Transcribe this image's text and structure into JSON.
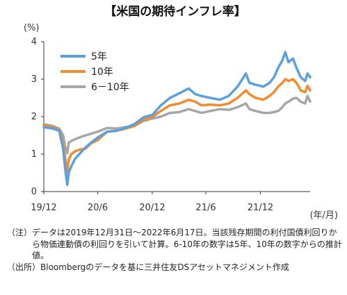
{
  "chart_data": {
    "type": "line",
    "title": "【米国の期待インフレ率】",
    "ylabel": "(%)",
    "xlabel": "(年/月)",
    "ylim": [
      0,
      4
    ],
    "yticks": [
      "0",
      "1",
      "2",
      "3",
      "4"
    ],
    "xlim": [
      "2019-12-31",
      "2022-06-17"
    ],
    "xticks": [
      {
        "label": "19/12",
        "date": "2019-12-31"
      },
      {
        "label": "20/6",
        "date": "2020-06-30"
      },
      {
        "label": "20/12",
        "date": "2020-12-31"
      },
      {
        "label": "21/6",
        "date": "2021-06-30"
      },
      {
        "label": "21/12",
        "date": "2021-12-31"
      }
    ],
    "grid": false,
    "legend_position": "top-left",
    "series": [
      {
        "name": "5年",
        "color": "#5aa0df",
        "points": [
          [
            "2019-12-31",
            1.72
          ],
          [
            "2020-01-31",
            1.68
          ],
          [
            "2020-02-21",
            1.62
          ],
          [
            "2020-03-05",
            1.15
          ],
          [
            "2020-03-12",
            0.62
          ],
          [
            "2020-03-19",
            0.18
          ],
          [
            "2020-03-24",
            0.5
          ],
          [
            "2020-04-02",
            0.68
          ],
          [
            "2020-04-15",
            0.88
          ],
          [
            "2020-05-01",
            1.02
          ],
          [
            "2020-05-20",
            1.18
          ],
          [
            "2020-06-10",
            1.32
          ],
          [
            "2020-07-01",
            1.45
          ],
          [
            "2020-08-01",
            1.6
          ],
          [
            "2020-09-01",
            1.62
          ],
          [
            "2020-10-01",
            1.7
          ],
          [
            "2020-11-01",
            1.8
          ],
          [
            "2020-12-01",
            1.98
          ],
          [
            "2021-01-01",
            2.05
          ],
          [
            "2021-01-29",
            2.3
          ],
          [
            "2021-03-01",
            2.5
          ],
          [
            "2021-04-01",
            2.62
          ],
          [
            "2021-05-03",
            2.75
          ],
          [
            "2021-05-25",
            2.6
          ],
          [
            "2021-06-15",
            2.55
          ],
          [
            "2021-07-15",
            2.5
          ],
          [
            "2021-08-16",
            2.45
          ],
          [
            "2021-09-15",
            2.55
          ],
          [
            "2021-10-15",
            2.8
          ],
          [
            "2021-11-12",
            3.15
          ],
          [
            "2021-11-24",
            2.9
          ],
          [
            "2021-12-15",
            2.85
          ],
          [
            "2022-01-10",
            2.8
          ],
          [
            "2022-01-31",
            2.9
          ],
          [
            "2022-02-15",
            3.05
          ],
          [
            "2022-03-01",
            3.3
          ],
          [
            "2022-03-15",
            3.5
          ],
          [
            "2022-03-25",
            3.72
          ],
          [
            "2022-04-05",
            3.45
          ],
          [
            "2022-04-20",
            3.55
          ],
          [
            "2022-05-02",
            3.3
          ],
          [
            "2022-05-16",
            3.05
          ],
          [
            "2022-05-31",
            2.95
          ],
          [
            "2022-06-08",
            3.15
          ],
          [
            "2022-06-17",
            3.05
          ]
        ]
      },
      {
        "name": "10年",
        "color": "#f28a2e",
        "points": [
          [
            "2019-12-31",
            1.78
          ],
          [
            "2020-01-31",
            1.7
          ],
          [
            "2020-02-21",
            1.65
          ],
          [
            "2020-03-05",
            1.3
          ],
          [
            "2020-03-12",
            0.9
          ],
          [
            "2020-03-19",
            0.52
          ],
          [
            "2020-03-24",
            0.85
          ],
          [
            "2020-04-02",
            1.0
          ],
          [
            "2020-04-15",
            1.08
          ],
          [
            "2020-05-01",
            1.12
          ],
          [
            "2020-05-20",
            1.15
          ],
          [
            "2020-06-10",
            1.3
          ],
          [
            "2020-07-01",
            1.38
          ],
          [
            "2020-08-01",
            1.6
          ],
          [
            "2020-09-01",
            1.62
          ],
          [
            "2020-10-01",
            1.68
          ],
          [
            "2020-11-01",
            1.75
          ],
          [
            "2020-12-01",
            1.92
          ],
          [
            "2021-01-01",
            2.0
          ],
          [
            "2021-01-29",
            2.15
          ],
          [
            "2021-03-01",
            2.3
          ],
          [
            "2021-04-01",
            2.35
          ],
          [
            "2021-05-03",
            2.45
          ],
          [
            "2021-05-25",
            2.4
          ],
          [
            "2021-06-15",
            2.3
          ],
          [
            "2021-07-15",
            2.32
          ],
          [
            "2021-08-16",
            2.3
          ],
          [
            "2021-09-15",
            2.35
          ],
          [
            "2021-10-15",
            2.5
          ],
          [
            "2021-11-12",
            2.7
          ],
          [
            "2021-11-24",
            2.6
          ],
          [
            "2021-12-15",
            2.5
          ],
          [
            "2022-01-10",
            2.45
          ],
          [
            "2022-01-31",
            2.55
          ],
          [
            "2022-02-15",
            2.65
          ],
          [
            "2022-03-01",
            2.8
          ],
          [
            "2022-03-15",
            2.9
          ],
          [
            "2022-03-25",
            3.0
          ],
          [
            "2022-04-05",
            2.95
          ],
          [
            "2022-04-20",
            3.0
          ],
          [
            "2022-05-02",
            2.9
          ],
          [
            "2022-05-16",
            2.7
          ],
          [
            "2022-05-31",
            2.65
          ],
          [
            "2022-06-08",
            2.82
          ],
          [
            "2022-06-17",
            2.7
          ]
        ]
      },
      {
        "name": "6－10年",
        "color": "#a6a6a6",
        "points": [
          [
            "2019-12-31",
            1.8
          ],
          [
            "2020-01-31",
            1.75
          ],
          [
            "2020-02-21",
            1.68
          ],
          [
            "2020-03-05",
            1.5
          ],
          [
            "2020-03-12",
            1.2
          ],
          [
            "2020-03-19",
            1.02
          ],
          [
            "2020-03-24",
            1.3
          ],
          [
            "2020-04-02",
            1.35
          ],
          [
            "2020-04-15",
            1.4
          ],
          [
            "2020-05-01",
            1.45
          ],
          [
            "2020-05-20",
            1.5
          ],
          [
            "2020-06-10",
            1.55
          ],
          [
            "2020-07-01",
            1.6
          ],
          [
            "2020-08-01",
            1.7
          ],
          [
            "2020-09-01",
            1.68
          ],
          [
            "2020-10-01",
            1.72
          ],
          [
            "2020-11-01",
            1.75
          ],
          [
            "2020-12-01",
            1.88
          ],
          [
            "2021-01-01",
            1.95
          ],
          [
            "2021-01-29",
            2.0
          ],
          [
            "2021-03-01",
            2.1
          ],
          [
            "2021-04-01",
            2.12
          ],
          [
            "2021-05-03",
            2.2
          ],
          [
            "2021-05-25",
            2.15
          ],
          [
            "2021-06-15",
            2.1
          ],
          [
            "2021-07-15",
            2.15
          ],
          [
            "2021-08-16",
            2.2
          ],
          [
            "2021-09-15",
            2.18
          ],
          [
            "2021-10-15",
            2.25
          ],
          [
            "2021-11-12",
            2.35
          ],
          [
            "2021-11-24",
            2.2
          ],
          [
            "2021-12-15",
            2.15
          ],
          [
            "2022-01-10",
            2.1
          ],
          [
            "2022-01-31",
            2.1
          ],
          [
            "2022-02-15",
            2.12
          ],
          [
            "2022-03-01",
            2.15
          ],
          [
            "2022-03-15",
            2.25
          ],
          [
            "2022-03-25",
            2.35
          ],
          [
            "2022-04-05",
            2.4
          ],
          [
            "2022-04-20",
            2.48
          ],
          [
            "2022-05-02",
            2.5
          ],
          [
            "2022-05-16",
            2.4
          ],
          [
            "2022-05-31",
            2.35
          ],
          [
            "2022-06-08",
            2.55
          ],
          [
            "2022-06-17",
            2.4
          ]
        ]
      }
    ]
  },
  "notes": [
    {
      "tag": "（注）",
      "text": "データは2019年12月31日～2022年6月17日。当該残存期間の利付国債利回りから物価連動債の利回りを引いて計算。6-10年の数字は5年、10年の数字からの推計値。"
    },
    {
      "tag": "（出所）",
      "text": "Bloombergのデータを基に三井住友DSアセットマネジメント作成"
    }
  ]
}
